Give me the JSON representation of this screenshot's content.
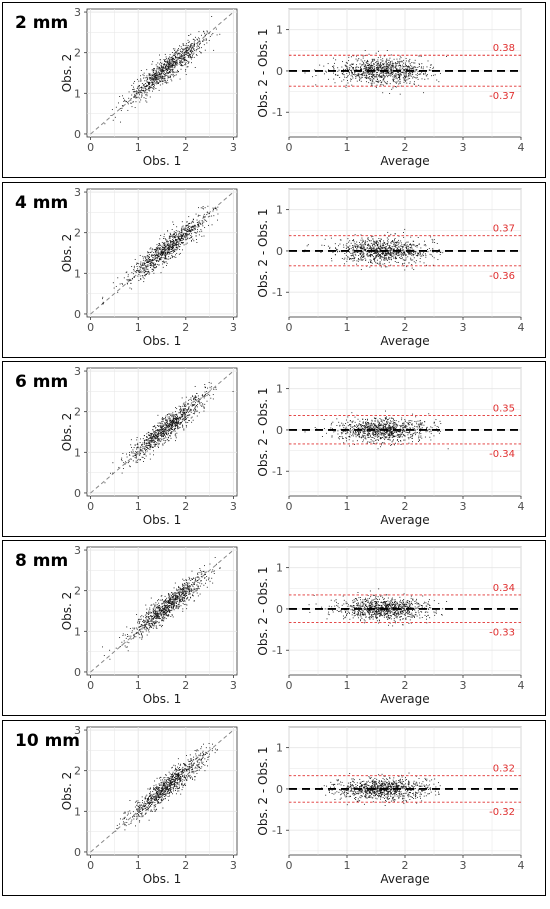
{
  "chart_data": [
    {
      "type": "scatter",
      "panel_label": "2 mm",
      "scatter": {
        "xlabel": "Obs. 1",
        "ylabel": "Obs. 2",
        "xlim": [
          0,
          3
        ],
        "ylim": [
          0,
          3
        ],
        "xticks": [
          "0",
          "1",
          "2",
          "3"
        ],
        "yticks": [
          "0",
          "1",
          "2",
          "3"
        ],
        "identity_line": true
      },
      "bland_altman": {
        "xlabel": "Average",
        "ylabel": "Obs. 2 - Obs. 1",
        "xlim": [
          0,
          4
        ],
        "ylim": [
          -1.6,
          1.5
        ],
        "xticks": [
          "0",
          "1",
          "2",
          "3",
          "4"
        ],
        "yticks": [
          "-1",
          "0",
          "1"
        ],
        "mean_diff": 0,
        "upper_loa": 0.38,
        "lower_loa": -0.37,
        "upper_label": "0.38",
        "lower_label": "-0.37"
      }
    },
    {
      "type": "scatter",
      "panel_label": "4 mm",
      "scatter": {
        "xlabel": "Obs. 1",
        "ylabel": "Obs. 2",
        "xlim": [
          0,
          3
        ],
        "ylim": [
          0,
          3
        ],
        "xticks": [
          "0",
          "1",
          "2",
          "3"
        ],
        "yticks": [
          "0",
          "1",
          "2",
          "3"
        ],
        "identity_line": true
      },
      "bland_altman": {
        "xlabel": "Average",
        "ylabel": "Obs. 2 - Obs. 1",
        "xlim": [
          0,
          4
        ],
        "ylim": [
          -1.6,
          1.5
        ],
        "xticks": [
          "0",
          "1",
          "2",
          "3",
          "4"
        ],
        "yticks": [
          "-1",
          "0",
          "1"
        ],
        "mean_diff": 0,
        "upper_loa": 0.37,
        "lower_loa": -0.36,
        "upper_label": "0.37",
        "lower_label": "-0.36"
      }
    },
    {
      "type": "scatter",
      "panel_label": "6 mm",
      "scatter": {
        "xlabel": "Obs. 1",
        "ylabel": "Obs. 2",
        "xlim": [
          0,
          3
        ],
        "ylim": [
          0,
          3
        ],
        "xticks": [
          "0",
          "1",
          "2",
          "3"
        ],
        "yticks": [
          "0",
          "1",
          "2",
          "3"
        ],
        "identity_line": true
      },
      "bland_altman": {
        "xlabel": "Average",
        "ylabel": "Obs. 2 - Obs. 1",
        "xlim": [
          0,
          4
        ],
        "ylim": [
          -1.6,
          1.5
        ],
        "xticks": [
          "0",
          "1",
          "2",
          "3",
          "4"
        ],
        "yticks": [
          "-1",
          "0",
          "1"
        ],
        "mean_diff": 0,
        "upper_loa": 0.35,
        "lower_loa": -0.34,
        "upper_label": "0.35",
        "lower_label": "-0.34"
      }
    },
    {
      "type": "scatter",
      "panel_label": "8 mm",
      "scatter": {
        "xlabel": "Obs. 1",
        "ylabel": "Obs. 2",
        "xlim": [
          0,
          3
        ],
        "ylim": [
          0,
          3
        ],
        "xticks": [
          "0",
          "1",
          "2",
          "3"
        ],
        "yticks": [
          "0",
          "1",
          "2",
          "3"
        ],
        "identity_line": true
      },
      "bland_altman": {
        "xlabel": "Average",
        "ylabel": "Obs. 2 - Obs. 1",
        "xlim": [
          0,
          4
        ],
        "ylim": [
          -1.6,
          1.5
        ],
        "xticks": [
          "0",
          "1",
          "2",
          "3",
          "4"
        ],
        "yticks": [
          "-1",
          "0",
          "1"
        ],
        "mean_diff": 0,
        "upper_loa": 0.34,
        "lower_loa": -0.33,
        "upper_label": "0.34",
        "lower_label": "-0.33"
      }
    },
    {
      "type": "scatter",
      "panel_label": "10 mm",
      "scatter": {
        "xlabel": "Obs. 1",
        "ylabel": "Obs. 2",
        "xlim": [
          0,
          3
        ],
        "ylim": [
          0,
          3
        ],
        "xticks": [
          "0",
          "1",
          "2",
          "3"
        ],
        "yticks": [
          "0",
          "1",
          "2",
          "3"
        ],
        "identity_line": true
      },
      "bland_altman": {
        "xlabel": "Average",
        "ylabel": "Obs. 2 - Obs. 1",
        "xlim": [
          0,
          4
        ],
        "ylim": [
          -1.6,
          1.5
        ],
        "xticks": [
          "0",
          "1",
          "2",
          "3",
          "4"
        ],
        "yticks": [
          "-1",
          "0",
          "1"
        ],
        "mean_diff": 0,
        "upper_loa": 0.32,
        "lower_loa": -0.32,
        "upper_label": "0.32",
        "lower_label": "-0.32"
      }
    }
  ],
  "colors": {
    "points": "#111111",
    "identity_line": "#888888",
    "mean_line": "#000000",
    "loa_line": "#e03030",
    "grid": "#e6e6e6",
    "panel_border": "#333333"
  }
}
